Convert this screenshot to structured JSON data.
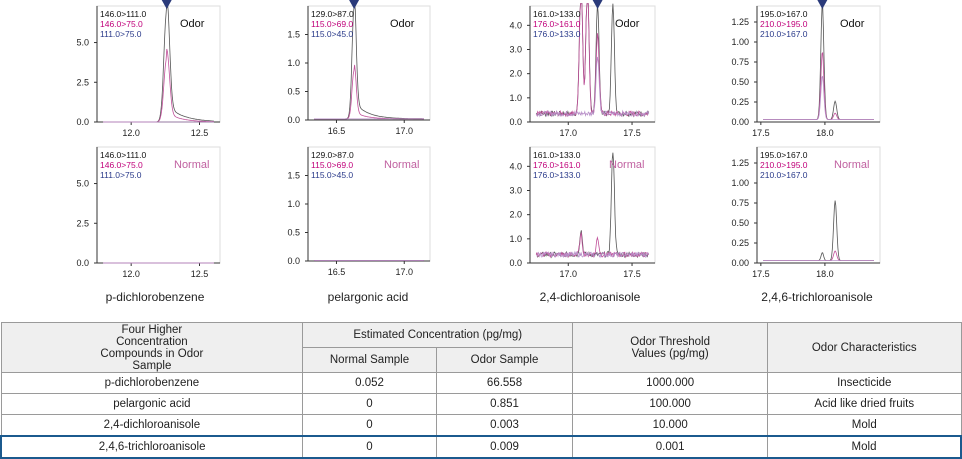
{
  "colors": {
    "trace1": "#555555",
    "trace2": "#c0509a",
    "trace3": "#b890c8",
    "label1": "#111111",
    "label2": "#c0007a",
    "label3": "#2a3a8a",
    "normal_label": "#c060a0",
    "marker": "#2a3a7a"
  },
  "chart_data": [
    {
      "type": "line",
      "compound": "p-dichlorobenzene",
      "condition": "Odor",
      "transitions": [
        "146.0>111.0",
        "146.0>75.0",
        "111.0>75.0"
      ],
      "xlim": [
        11.75,
        12.65
      ],
      "ylim": [
        0,
        7.3
      ],
      "xticks": [
        "12.0",
        "12.5"
      ],
      "yticks": [
        "0.0",
        "2.5",
        "5.0"
      ],
      "marker_x": 12.26,
      "baseline": 0,
      "peaks": [
        [
          {
            "x": 12.26,
            "h": 7.0,
            "w": 0.02,
            "tail": 0.12
          }
        ],
        [
          {
            "x": 12.26,
            "h": 4.0,
            "w": 0.02,
            "tail": 0.1
          }
        ],
        []
      ]
    },
    {
      "type": "line",
      "compound": "pelargonic acid",
      "condition": "Odor",
      "transitions": [
        "129.0>87.0",
        "115.0>69.0",
        "115.0>45.0"
      ],
      "xlim": [
        16.29,
        17.19
      ],
      "ylim": [
        0,
        2.0
      ],
      "xticks": [
        "16.5",
        "17.0"
      ],
      "yticks": [
        "0.0",
        "0.5",
        "1.0",
        "1.5"
      ],
      "marker_x": 16.63,
      "baseline": 0.02,
      "peaks": [
        [
          {
            "x": 16.63,
            "h": 1.95,
            "w": 0.015,
            "tail": 0.1
          }
        ],
        [
          {
            "x": 16.63,
            "h": 0.85,
            "w": 0.015,
            "tail": 0.08
          }
        ],
        []
      ]
    },
    {
      "type": "line",
      "compound": "2,4-dichloroanisole",
      "condition": "Odor",
      "transitions": [
        "161.0>133.0",
        "176.0>161.0",
        "176.0>133.0"
      ],
      "xlim": [
        16.7,
        17.68
      ],
      "ylim": [
        0,
        4.8
      ],
      "xticks": [
        "17.0",
        "17.5"
      ],
      "yticks": [
        "0.0",
        "1.0",
        "2.0",
        "3.0",
        "4.0"
      ],
      "marker_x": 17.23,
      "baseline": 0.35,
      "peaks": [
        [
          {
            "x": 17.1,
            "h": 5.5,
            "w": 0.012
          },
          {
            "x": 17.15,
            "h": 5.5,
            "w": 0.012
          },
          {
            "x": 17.23,
            "h": 4.5,
            "w": 0.012
          },
          {
            "x": 17.35,
            "h": 4.5,
            "w": 0.012
          }
        ],
        [
          {
            "x": 17.1,
            "h": 5.5,
            "w": 0.012
          },
          {
            "x": 17.15,
            "h": 5.5,
            "w": 0.012
          },
          {
            "x": 17.23,
            "h": 3.3,
            "w": 0.012
          }
        ],
        [
          {
            "x": 17.23,
            "h": 2.4,
            "w": 0.012
          }
        ]
      ]
    },
    {
      "type": "line",
      "compound": "2,4,6-trichloroanisole",
      "condition": "Odor",
      "transitions": [
        "195.0>167.0",
        "210.0>195.0",
        "210.0>167.0"
      ],
      "xlim": [
        17.47,
        18.43
      ],
      "ylim": [
        0,
        1.45
      ],
      "xticks": [
        "17.5",
        "18.0"
      ],
      "yticks": [
        "0.00",
        "0.25",
        "0.50",
        "0.75",
        "1.00",
        "1.25"
      ],
      "marker_x": 17.98,
      "baseline": 0.03,
      "peaks": [
        [
          {
            "x": 17.98,
            "h": 1.45,
            "w": 0.012
          },
          {
            "x": 18.08,
            "h": 0.23,
            "w": 0.012
          }
        ],
        [
          {
            "x": 17.98,
            "h": 0.85,
            "w": 0.012
          },
          {
            "x": 18.08,
            "h": 0.08,
            "w": 0.012
          }
        ],
        [
          {
            "x": 17.98,
            "h": 0.55,
            "w": 0.012
          }
        ]
      ]
    },
    {
      "type": "line",
      "compound": "p-dichlorobenzene",
      "condition": "Normal",
      "transitions": [
        "146.0>111.0",
        "146.0>75.0",
        "111.0>75.0"
      ],
      "xlim": [
        11.75,
        12.65
      ],
      "ylim": [
        0,
        7.3
      ],
      "xticks": [
        "12.0",
        "12.5"
      ],
      "yticks": [
        "0.0",
        "2.5",
        "5.0"
      ],
      "baseline": 0,
      "peaks": [
        [],
        [],
        []
      ]
    },
    {
      "type": "line",
      "compound": "pelargonic acid",
      "condition": "Normal",
      "transitions": [
        "129.0>87.0",
        "115.0>69.0",
        "115.0>45.0"
      ],
      "xlim": [
        16.29,
        17.19
      ],
      "ylim": [
        0,
        2.0
      ],
      "xticks": [
        "16.5",
        "17.0"
      ],
      "yticks": [
        "0.0",
        "0.5",
        "1.0",
        "1.5"
      ],
      "baseline": 0.01,
      "peaks": [
        [],
        [],
        []
      ]
    },
    {
      "type": "line",
      "compound": "2,4-dichloroanisole",
      "condition": "Normal",
      "transitions": [
        "161.0>133.0",
        "176.0>161.0",
        "176.0>133.0"
      ],
      "xlim": [
        16.7,
        17.68
      ],
      "ylim": [
        0,
        4.8
      ],
      "xticks": [
        "17.0",
        "17.5"
      ],
      "yticks": [
        "0.0",
        "1.0",
        "2.0",
        "3.0",
        "4.0"
      ],
      "baseline": 0.35,
      "peaks": [
        [
          {
            "x": 17.35,
            "h": 4.3,
            "w": 0.012
          },
          {
            "x": 17.1,
            "h": 1.0,
            "w": 0.01
          }
        ],
        [
          {
            "x": 17.1,
            "h": 0.8,
            "w": 0.01
          },
          {
            "x": 17.23,
            "h": 0.7,
            "w": 0.01
          }
        ],
        []
      ]
    },
    {
      "type": "line",
      "compound": "2,4,6-trichloroanisole",
      "condition": "Normal",
      "transitions": [
        "195.0>167.0",
        "210.0>195.0",
        "210.0>167.0"
      ],
      "xlim": [
        17.47,
        18.43
      ],
      "ylim": [
        0,
        1.45
      ],
      "xticks": [
        "17.5",
        "18.0"
      ],
      "yticks": [
        "0.00",
        "0.25",
        "0.50",
        "0.75",
        "1.00",
        "1.25"
      ],
      "baseline": 0.03,
      "peaks": [
        [
          {
            "x": 18.08,
            "h": 0.75,
            "w": 0.012
          },
          {
            "x": 17.98,
            "h": 0.1,
            "w": 0.01
          }
        ],
        [
          {
            "x": 18.08,
            "h": 0.12,
            "w": 0.012
          }
        ],
        []
      ]
    }
  ],
  "compound_names": [
    "p-dichlorobenzene",
    "pelargonic acid",
    "2,4-dichloroanisole",
    "2,4,6-trichloroanisole"
  ],
  "table": {
    "h_compounds": "Four Higher Concentration Compounds in Odor Sample",
    "h_estimated": "Estimated Concentration (pg/mg)",
    "h_normal": "Normal Sample",
    "h_odor": "Odor Sample",
    "h_threshold": "Odor Threshold Values (pg/mg)",
    "h_character": "Odor Characteristics",
    "rows": [
      [
        "p-dichlorobenzene",
        "0.052",
        "66.558",
        "1000.000",
        "Insecticide"
      ],
      [
        "pelargonic acid",
        "0",
        "0.851",
        "100.000",
        "Acid like dried fruits"
      ],
      [
        "2,4-dichloroanisole",
        "0",
        "0.003",
        "10.000",
        "Mold"
      ],
      [
        "2,4,6-trichloroanisole",
        "0",
        "0.009",
        "0.001",
        "Mold"
      ]
    ]
  }
}
